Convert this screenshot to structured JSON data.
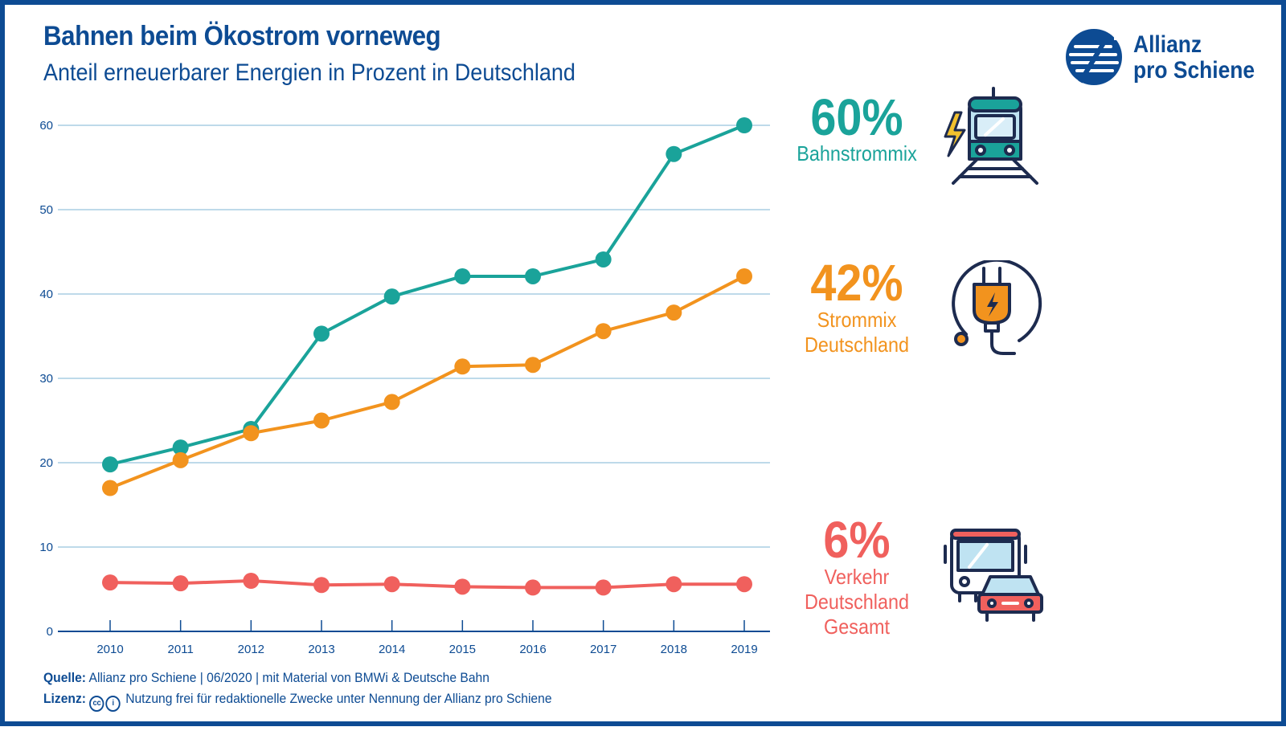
{
  "header": {
    "title": "Bahnen beim Ökostrom vorneweg",
    "subtitle": "Anteil erneuerbarer Energien in Prozent in Deutschland"
  },
  "logo": {
    "line1": "Allianz",
    "line2": "pro Schiene"
  },
  "colors": {
    "teal": "#1aa39a",
    "orange": "#f2931e",
    "red": "#f0605d",
    "navy": "#0d4b93",
    "grid": "#a9cde3"
  },
  "chart_data": {
    "type": "line",
    "x": [
      "2010",
      "2011",
      "2012",
      "2013",
      "2014",
      "2015",
      "2016",
      "2017",
      "2018",
      "2019"
    ],
    "ylim": [
      0,
      60
    ],
    "yticks": [
      0,
      10,
      20,
      30,
      40,
      50,
      60
    ],
    "grid": true,
    "series": [
      {
        "name": "Bahnstrommix",
        "color": "#1aa39a",
        "values": [
          19.8,
          21.8,
          24.0,
          35.3,
          39.7,
          42.1,
          42.1,
          44.1,
          56.6,
          60.0
        ]
      },
      {
        "name": "Strommix Deutschland",
        "color": "#f2931e",
        "values": [
          17.0,
          20.3,
          23.5,
          25.0,
          27.2,
          31.4,
          31.6,
          35.6,
          37.8,
          42.1
        ]
      },
      {
        "name": "Verkehr Deutschland Gesamt",
        "color": "#f0605d",
        "values": [
          5.8,
          5.7,
          6.0,
          5.5,
          5.6,
          5.3,
          5.2,
          5.2,
          5.6,
          5.6
        ]
      }
    ]
  },
  "callouts": [
    {
      "value": "60%",
      "label": "Bahnstrommix",
      "icon": "train-icon"
    },
    {
      "value": "42%",
      "label_line1": "Strommix",
      "label_line2": "Deutschland",
      "icon": "plug-icon"
    },
    {
      "value": "6%",
      "label_line1": "Verkehr",
      "label_line2": "Deutschland",
      "label_line3": "Gesamt",
      "icon": "bus-car-icon"
    }
  ],
  "footer": {
    "source_label": "Quelle:",
    "source_text": "Allianz pro Schiene | 06/2020 | mit Material von BMWi & Deutsche Bahn",
    "license_label": "Lizenz:",
    "license_text": "Nutzung frei für redaktionelle Zwecke unter Nennung der Allianz pro Schiene"
  }
}
